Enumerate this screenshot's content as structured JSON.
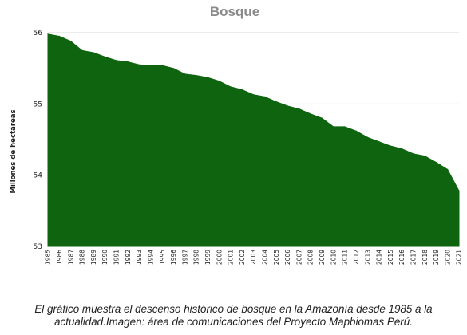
{
  "chart_data": {
    "type": "area",
    "title": "Bosque",
    "xlabel": "",
    "ylabel": "Millones de hectáreas",
    "ylim": [
      53,
      56
    ],
    "yticks": [
      "53",
      "54",
      "55",
      "56"
    ],
    "grid": true,
    "color": "#0f650f",
    "x": [
      "1985",
      "1986",
      "1987",
      "1988",
      "1989",
      "1990",
      "1991",
      "1992",
      "1993",
      "1994",
      "1995",
      "1996",
      "1997",
      "1998",
      "1999",
      "2000",
      "2001",
      "2002",
      "2003",
      "2004",
      "2005",
      "2006",
      "2007",
      "2008",
      "2009",
      "2010",
      "2011",
      "2012",
      "2013",
      "2014",
      "2015",
      "2016",
      "2017",
      "2018",
      "2019",
      "2020",
      "2021"
    ],
    "values": [
      55.98,
      55.95,
      55.88,
      55.75,
      55.72,
      55.66,
      55.61,
      55.59,
      55.55,
      55.54,
      55.54,
      55.5,
      55.42,
      55.4,
      55.37,
      55.32,
      55.24,
      55.2,
      55.13,
      55.1,
      55.03,
      54.97,
      54.93,
      54.86,
      54.8,
      54.68,
      54.68,
      54.62,
      54.53,
      54.47,
      54.41,
      54.37,
      54.3,
      54.27,
      54.18,
      54.08,
      53.78
    ]
  },
  "caption": {
    "line1": "El gráfico muestra el descenso histórico de bosque en la Amazonía desde 1985 a la",
    "line2": "actualidad.Imagen: área de comunicaciones del Proyecto Mapbiomas Perú."
  }
}
